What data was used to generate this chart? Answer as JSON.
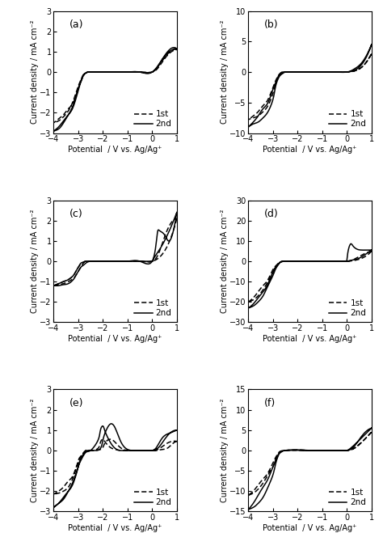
{
  "panels": [
    {
      "label": "(a)",
      "ylim": [
        -3,
        3
      ],
      "yticks": [
        -3,
        -2,
        -1,
        0,
        1,
        2,
        3
      ],
      "xlim": [
        -4,
        1
      ],
      "xticks": [
        -4,
        -3,
        -2,
        -1,
        0,
        1
      ],
      "cv1_fwd_x": [
        1.0,
        0.5,
        0.0,
        -0.5,
        -1.0,
        -1.5,
        -2.0,
        -2.2,
        -2.4,
        -2.6,
        -2.7,
        -2.8,
        -2.9,
        -3.0,
        -3.2,
        -3.4,
        -3.6,
        -3.8,
        -4.0
      ],
      "cv1_fwd_y": [
        1.1,
        0.7,
        0.0,
        0.0,
        0.0,
        0.0,
        0.0,
        0.0,
        0.0,
        0.0,
        -0.05,
        -0.15,
        -0.4,
        -0.7,
        -1.4,
        -1.9,
        -2.2,
        -2.4,
        -2.5
      ],
      "cv1_rev_x": [
        -4.0,
        -3.8,
        -3.6,
        -3.4,
        -3.2,
        -3.0,
        -2.9,
        -2.8,
        -2.7,
        -2.6,
        -2.5,
        -2.4,
        -2.2,
        -2.0,
        -1.5,
        -1.0,
        -0.5,
        0.0,
        0.3,
        0.6,
        1.0
      ],
      "cv1_rev_y": [
        -2.5,
        -2.3,
        -2.1,
        -1.8,
        -1.5,
        -0.8,
        -0.5,
        -0.2,
        -0.05,
        0.0,
        0.0,
        0.0,
        0.0,
        0.0,
        0.0,
        0.0,
        0.0,
        0.0,
        0.3,
        0.8,
        1.1
      ],
      "cv2_fwd_x": [
        1.0,
        0.5,
        0.0,
        -0.5,
        -1.0,
        -1.5,
        -2.0,
        -2.2,
        -2.4,
        -2.6,
        -2.7,
        -2.8,
        -2.9,
        -3.0,
        -3.2,
        -3.4,
        -3.6,
        -3.8,
        -4.0
      ],
      "cv2_fwd_y": [
        1.15,
        0.8,
        0.0,
        0.0,
        0.0,
        0.0,
        0.0,
        0.0,
        0.0,
        0.0,
        -0.05,
        -0.15,
        -0.45,
        -0.8,
        -1.6,
        -2.1,
        -2.5,
        -2.8,
        -2.9
      ],
      "cv2_rev_x": [
        -4.0,
        -3.8,
        -3.6,
        -3.4,
        -3.2,
        -3.0,
        -2.9,
        -2.8,
        -2.7,
        -2.6,
        -2.5,
        -2.4,
        -2.2,
        -2.0,
        -1.5,
        -1.0,
        -0.5,
        0.0,
        0.3,
        0.6,
        1.0
      ],
      "cv2_rev_y": [
        -2.9,
        -2.7,
        -2.4,
        -2.1,
        -1.7,
        -0.9,
        -0.5,
        -0.2,
        -0.05,
        0.0,
        0.0,
        0.0,
        0.0,
        0.0,
        0.0,
        0.0,
        0.0,
        0.0,
        0.4,
        0.9,
        1.15
      ]
    },
    {
      "label": "(b)",
      "ylim": [
        -10,
        10
      ],
      "yticks": [
        -10,
        -5,
        0,
        5,
        10
      ],
      "xlim": [
        -4,
        1
      ],
      "xticks": [
        -4,
        -3,
        -2,
        -1,
        0,
        1
      ],
      "cv1_fwd_x": [
        1.0,
        0.5,
        0.0,
        -0.5,
        -1.0,
        -1.5,
        -2.0,
        -2.2,
        -2.4,
        -2.5,
        -2.6,
        -2.7,
        -2.8,
        -2.9,
        -3.0,
        -3.2,
        -3.4,
        -3.6,
        -3.8,
        -4.0
      ],
      "cv1_fwd_y": [
        3.0,
        0.5,
        0.0,
        0.0,
        0.0,
        0.0,
        0.0,
        0.0,
        0.0,
        0.0,
        -0.2,
        -0.5,
        -1.0,
        -2.0,
        -3.5,
        -5.5,
        -6.5,
        -7.2,
        -7.5,
        -7.8
      ],
      "cv1_rev_x": [
        -4.0,
        -3.8,
        -3.6,
        -3.4,
        -3.2,
        -3.0,
        -2.9,
        -2.8,
        -2.7,
        -2.6,
        -2.5,
        -2.4,
        -2.2,
        -2.0,
        -1.5,
        -1.0,
        -0.5,
        0.0,
        0.3,
        0.6,
        1.0
      ],
      "cv1_rev_y": [
        -7.8,
        -7.2,
        -6.5,
        -5.5,
        -4.5,
        -2.5,
        -1.5,
        -0.7,
        -0.2,
        0.0,
        0.0,
        0.0,
        0.0,
        0.0,
        0.0,
        0.0,
        0.0,
        0.0,
        0.2,
        0.8,
        3.0
      ],
      "cv2_fwd_x": [
        1.0,
        0.5,
        0.0,
        -0.5,
        -1.0,
        -1.5,
        -2.0,
        -2.2,
        -2.4,
        -2.5,
        -2.6,
        -2.7,
        -2.8,
        -2.9,
        -3.0,
        -3.2,
        -3.4,
        -3.6,
        -3.8,
        -4.0
      ],
      "cv2_fwd_y": [
        4.5,
        0.8,
        0.0,
        0.0,
        0.0,
        0.0,
        0.0,
        0.0,
        0.0,
        0.0,
        -0.2,
        -0.5,
        -1.2,
        -2.5,
        -4.5,
        -6.5,
        -7.5,
        -8.2,
        -8.5,
        -9.0
      ],
      "cv2_rev_x": [
        -4.0,
        -3.8,
        -3.6,
        -3.4,
        -3.2,
        -3.0,
        -2.9,
        -2.8,
        -2.7,
        -2.6,
        -2.5,
        -2.4,
        -2.2,
        -2.0,
        -1.5,
        -1.0,
        -0.5,
        0.0,
        0.3,
        0.6,
        1.0
      ],
      "cv2_rev_y": [
        -9.0,
        -8.2,
        -7.2,
        -6.0,
        -5.0,
        -2.8,
        -1.8,
        -0.8,
        -0.2,
        0.0,
        0.0,
        0.0,
        0.0,
        0.0,
        0.0,
        0.0,
        0.0,
        0.0,
        0.5,
        1.5,
        4.5
      ]
    },
    {
      "label": "(c)",
      "ylim": [
        -3,
        3
      ],
      "yticks": [
        -3,
        -2,
        -1,
        0,
        1,
        2,
        3
      ],
      "xlim": [
        -4,
        1
      ],
      "xticks": [
        -4,
        -3,
        -2,
        -1,
        0,
        1
      ],
      "cv1_fwd_x": [
        1.0,
        0.5,
        0.0,
        -0.5,
        -1.0,
        -1.5,
        -2.0,
        -2.5,
        -2.7,
        -2.8,
        -2.9,
        -3.0,
        -3.1,
        -3.2,
        -3.4,
        -3.6,
        -3.8,
        -4.0
      ],
      "cv1_fwd_y": [
        2.1,
        0.5,
        0.0,
        0.0,
        0.0,
        0.0,
        0.0,
        0.0,
        0.0,
        -0.1,
        -0.3,
        -0.5,
        -0.7,
        -0.85,
        -1.0,
        -1.1,
        -1.15,
        -1.2
      ],
      "cv1_rev_x": [
        -4.0,
        -3.8,
        -3.6,
        -3.4,
        -3.2,
        -3.1,
        -3.0,
        -2.9,
        -2.8,
        -2.7,
        -2.5,
        -2.0,
        -1.5,
        -1.0,
        -0.5,
        0.0,
        0.3,
        0.6,
        1.0
      ],
      "cv1_rev_y": [
        -1.2,
        -1.1,
        -1.0,
        -0.9,
        -0.7,
        -0.5,
        -0.3,
        -0.15,
        -0.05,
        0.0,
        0.0,
        0.0,
        0.0,
        0.0,
        0.0,
        0.0,
        0.5,
        1.5,
        2.1
      ],
      "cv2_fwd_x": [
        1.0,
        0.5,
        0.2,
        0.05,
        0.0,
        -0.3,
        -0.5,
        -1.0,
        -1.5,
        -2.0,
        -2.5,
        -2.7,
        -2.8,
        -2.9,
        -3.0,
        -3.1,
        -3.2,
        -3.4,
        -3.6,
        -3.8,
        -4.0
      ],
      "cv2_fwd_y": [
        2.4,
        1.0,
        0.4,
        0.1,
        0.0,
        0.0,
        0.0,
        0.0,
        0.0,
        0.0,
        0.0,
        -0.1,
        -0.2,
        -0.3,
        -0.5,
        -0.7,
        -0.9,
        -1.1,
        -1.15,
        -1.2,
        -1.2
      ],
      "cv2_rev_x": [
        -4.0,
        -3.8,
        -3.6,
        -3.4,
        -3.2,
        -3.1,
        -3.0,
        -2.9,
        -2.8,
        -2.7,
        -2.5,
        -2.0,
        -1.5,
        -1.0,
        -0.5,
        0.0,
        0.2,
        0.3,
        0.5,
        0.7,
        1.0
      ],
      "cv2_rev_y": [
        -1.2,
        -1.1,
        -1.0,
        -0.9,
        -0.7,
        -0.5,
        -0.3,
        -0.1,
        -0.05,
        0.0,
        0.0,
        0.0,
        0.0,
        0.0,
        0.0,
        0.0,
        1.3,
        1.5,
        1.3,
        1.0,
        2.4
      ]
    },
    {
      "label": "(d)",
      "ylim": [
        -30,
        30
      ],
      "yticks": [
        -30,
        -20,
        -10,
        0,
        10,
        20,
        30
      ],
      "xlim": [
        -4,
        1
      ],
      "xticks": [
        -4,
        -3,
        -2,
        -1,
        0,
        1
      ],
      "cv1_fwd_x": [
        1.0,
        0.5,
        0.0,
        -0.3,
        -0.5,
        -1.0,
        -1.5,
        -2.0,
        -2.5,
        -2.7,
        -2.8,
        -2.9,
        -3.0,
        -3.2,
        -3.4,
        -3.6,
        -3.8,
        -4.0
      ],
      "cv1_fwd_y": [
        5.0,
        1.0,
        0.0,
        0.0,
        0.0,
        0.0,
        0.0,
        0.0,
        0.0,
        -0.5,
        -1.5,
        -3.0,
        -6.0,
        -10.0,
        -14.0,
        -17.0,
        -19.0,
        -20.0
      ],
      "cv1_rev_x": [
        -4.0,
        -3.8,
        -3.6,
        -3.4,
        -3.2,
        -3.0,
        -2.9,
        -2.8,
        -2.7,
        -2.5,
        -2.0,
        -1.5,
        -1.0,
        -0.5,
        0.0,
        0.3,
        0.6,
        1.0
      ],
      "cv1_rev_y": [
        -20.0,
        -18.0,
        -15.0,
        -12.0,
        -9.0,
        -4.0,
        -2.5,
        -1.2,
        -0.3,
        0.0,
        0.0,
        0.0,
        0.0,
        0.0,
        0.0,
        1.0,
        3.0,
        5.0
      ],
      "cv2_fwd_x": [
        1.0,
        0.5,
        0.3,
        0.1,
        0.0,
        -0.1,
        -0.2,
        -0.5,
        -1.0,
        -1.5,
        -2.0,
        -2.5,
        -2.7,
        -2.8,
        -2.9,
        -3.0,
        -3.2,
        -3.4,
        -3.6,
        -3.8,
        -4.0
      ],
      "cv2_fwd_y": [
        5.5,
        1.5,
        0.8,
        0.2,
        0.0,
        0.0,
        0.0,
        0.0,
        0.0,
        0.0,
        0.0,
        0.0,
        -0.5,
        -2.0,
        -4.0,
        -7.0,
        -12.0,
        -17.0,
        -20.0,
        -22.0,
        -23.0
      ],
      "cv2_rev_x": [
        -4.0,
        -3.8,
        -3.6,
        -3.4,
        -3.2,
        -3.0,
        -2.9,
        -2.8,
        -2.7,
        -2.5,
        -2.0,
        -1.5,
        -1.0,
        -0.5,
        -0.1,
        0.0,
        0.05,
        0.15,
        0.25,
        0.4,
        0.6,
        1.0
      ],
      "cv2_rev_y": [
        -23.0,
        -21.0,
        -18.0,
        -15.0,
        -11.0,
        -5.0,
        -3.0,
        -1.5,
        -0.4,
        0.0,
        0.0,
        0.0,
        0.0,
        0.0,
        0.0,
        0.5,
        5.0,
        8.5,
        7.5,
        6.0,
        5.5,
        5.5
      ]
    },
    {
      "label": "(e)",
      "ylim": [
        -3,
        3
      ],
      "yticks": [
        -3,
        -2,
        -1,
        0,
        1,
        2,
        3
      ],
      "xlim": [
        -4,
        1
      ],
      "xticks": [
        -4,
        -3,
        -2,
        -1,
        0,
        1
      ],
      "cv1_fwd_x": [
        1.0,
        0.8,
        0.6,
        0.4,
        0.2,
        0.0,
        -0.3,
        -0.5,
        -1.0,
        -1.3,
        -1.5,
        -1.7,
        -1.9,
        -2.0,
        -2.1,
        -2.2,
        -2.5,
        -2.7,
        -2.9,
        -3.0,
        -3.2,
        -3.4,
        -3.6,
        -3.8,
        -4.0
      ],
      "cv1_fwd_y": [
        0.45,
        0.3,
        0.1,
        0.05,
        0.0,
        0.0,
        0.0,
        0.0,
        0.0,
        0.0,
        0.05,
        0.15,
        0.4,
        0.55,
        0.4,
        0.1,
        0.0,
        0.0,
        -0.3,
        -0.6,
        -1.3,
        -1.8,
        -2.0,
        -2.1,
        -2.15
      ],
      "cv1_rev_x": [
        -4.0,
        -3.8,
        -3.6,
        -3.4,
        -3.2,
        -3.0,
        -2.9,
        -2.7,
        -2.5,
        -2.3,
        -2.1,
        -2.0,
        -1.9,
        -1.7,
        -1.5,
        -1.3,
        -1.0,
        -0.5,
        0.0,
        0.3,
        0.6,
        1.0
      ],
      "cv1_rev_y": [
        -2.15,
        -2.0,
        -1.8,
        -1.5,
        -1.2,
        -0.5,
        -0.3,
        -0.05,
        0.0,
        0.0,
        0.05,
        0.15,
        0.4,
        0.55,
        0.4,
        0.15,
        0.0,
        0.0,
        0.0,
        0.1,
        0.35,
        0.45
      ],
      "cv2_fwd_x": [
        1.0,
        0.8,
        0.6,
        0.4,
        0.2,
        0.0,
        -0.3,
        -0.5,
        -1.0,
        -1.3,
        -1.5,
        -1.7,
        -1.9,
        -2.0,
        -2.1,
        -2.2,
        -2.5,
        -2.7,
        -2.9,
        -3.0,
        -3.2,
        -3.4,
        -3.6,
        -3.8,
        -4.0
      ],
      "cv2_fwd_y": [
        1.0,
        0.9,
        0.8,
        0.6,
        0.2,
        0.0,
        0.0,
        0.0,
        0.0,
        0.0,
        0.1,
        0.4,
        0.9,
        1.2,
        1.0,
        0.5,
        0.0,
        -0.1,
        -0.5,
        -0.8,
        -1.5,
        -2.0,
        -2.4,
        -2.6,
        -2.8
      ],
      "cv2_rev_x": [
        -4.0,
        -3.8,
        -3.6,
        -3.4,
        -3.2,
        -3.0,
        -2.9,
        -2.7,
        -2.5,
        -2.3,
        -2.1,
        -2.0,
        -1.9,
        -1.7,
        -1.5,
        -1.3,
        -1.0,
        -0.5,
        0.0,
        0.3,
        0.6,
        1.0
      ],
      "cv2_rev_y": [
        -2.8,
        -2.6,
        -2.3,
        -2.0,
        -1.6,
        -0.8,
        -0.4,
        -0.05,
        0.0,
        0.0,
        0.1,
        0.5,
        0.9,
        1.3,
        1.1,
        0.5,
        0.05,
        0.0,
        0.0,
        0.2,
        0.7,
        1.0
      ]
    },
    {
      "label": "(f)",
      "ylim": [
        -15,
        15
      ],
      "yticks": [
        -15,
        -10,
        -5,
        0,
        5,
        10,
        15
      ],
      "xlim": [
        -4,
        1
      ],
      "xticks": [
        -4,
        -3,
        -2,
        -1,
        0,
        1
      ],
      "cv1_fwd_x": [
        1.0,
        0.5,
        0.2,
        0.0,
        -0.2,
        -0.5,
        -1.0,
        -1.5,
        -1.8,
        -2.0,
        -2.2,
        -2.5,
        -2.7,
        -2.8,
        -2.9,
        -3.0,
        -3.2,
        -3.4,
        -3.6,
        -3.8,
        -4.0
      ],
      "cv1_fwd_y": [
        4.5,
        1.5,
        0.3,
        0.0,
        0.0,
        0.0,
        0.0,
        0.0,
        0.0,
        0.05,
        0.1,
        0.0,
        -0.5,
        -1.2,
        -2.5,
        -4.0,
        -6.0,
        -8.0,
        -9.5,
        -10.5,
        -11.0
      ],
      "cv1_rev_x": [
        -4.0,
        -3.8,
        -3.6,
        -3.4,
        -3.2,
        -3.0,
        -2.9,
        -2.8,
        -2.7,
        -2.5,
        -2.2,
        -2.0,
        -1.8,
        -1.5,
        -1.0,
        -0.5,
        0.0,
        0.3,
        0.6,
        1.0
      ],
      "cv1_rev_y": [
        -11.0,
        -10.0,
        -8.5,
        -7.0,
        -5.5,
        -3.0,
        -1.8,
        -0.8,
        -0.2,
        0.0,
        0.1,
        0.15,
        0.1,
        0.0,
        0.0,
        0.0,
        0.0,
        0.5,
        2.0,
        4.5
      ],
      "cv2_fwd_x": [
        1.0,
        0.5,
        0.2,
        0.0,
        -0.2,
        -0.5,
        -1.0,
        -1.5,
        -1.8,
        -2.0,
        -2.2,
        -2.5,
        -2.7,
        -2.8,
        -2.9,
        -3.0,
        -3.2,
        -3.4,
        -3.6,
        -3.8,
        -4.0
      ],
      "cv2_fwd_y": [
        5.5,
        2.5,
        0.8,
        0.0,
        0.0,
        0.0,
        0.0,
        0.0,
        0.0,
        0.05,
        0.1,
        0.0,
        -0.5,
        -1.5,
        -3.5,
        -6.0,
        -9.0,
        -11.5,
        -13.0,
        -14.0,
        -14.5
      ],
      "cv2_rev_x": [
        -4.0,
        -3.8,
        -3.6,
        -3.4,
        -3.2,
        -3.0,
        -2.9,
        -2.8,
        -2.7,
        -2.5,
        -2.2,
        -2.0,
        -1.8,
        -1.5,
        -1.0,
        -0.5,
        0.0,
        0.3,
        0.6,
        1.0
      ],
      "cv2_rev_y": [
        -14.5,
        -13.0,
        -11.0,
        -9.0,
        -7.0,
        -4.0,
        -2.5,
        -1.2,
        -0.3,
        0.0,
        0.1,
        0.15,
        0.1,
        0.0,
        0.0,
        0.0,
        0.0,
        1.0,
        3.5,
        5.5
      ]
    }
  ],
  "ylabel": "Current density / mA cm⁻²",
  "xlabel": "Potential  / V vs. Ag/Ag⁺",
  "legend_1st": "1st",
  "legend_2nd": "2nd",
  "lw": 1.1,
  "label_fontsize": 7.5,
  "tick_fontsize": 7,
  "axis_label_fontsize": 7
}
